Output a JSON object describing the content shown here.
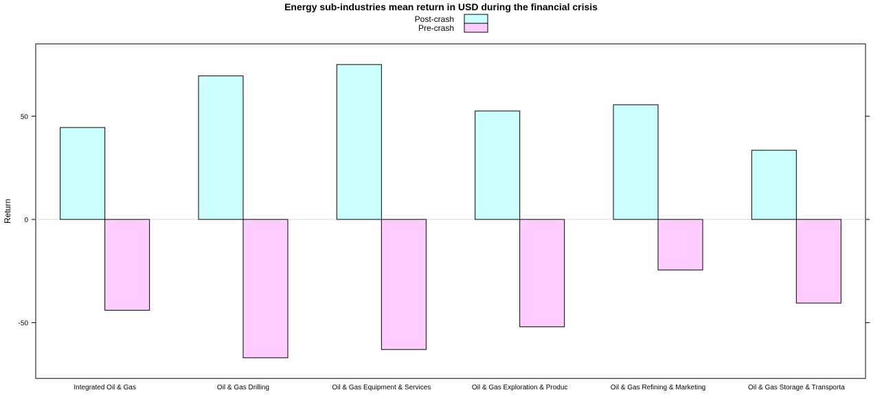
{
  "chart_data": {
    "type": "bar",
    "title": "Energy sub-industries mean return in USD during the financial crisis",
    "ylabel": "Return",
    "xlabel": "",
    "categories": [
      "Integrated Oil & Gas",
      "Oil & Gas Drilling",
      "Oil & Gas Equipment & Services",
      "Oil & Gas Exploration & Produc",
      "Oil & Gas Refining & Marketing",
      "Oil & Gas Storage & Transporta"
    ],
    "series": [
      {
        "name": "Post-crash",
        "color": "#ccffff",
        "values": [
          44.5,
          69.5,
          75,
          52.5,
          55.5,
          33.5
        ]
      },
      {
        "name": "Pre-crash",
        "color": "#ffccff",
        "values": [
          -44,
          -67,
          -63,
          -52,
          -24.5,
          -40.5
        ]
      }
    ],
    "ylim": [
      -77,
      85
    ],
    "yticks": [
      -50,
      0,
      50
    ],
    "ytick_labels": [
      "-50",
      "0",
      "50"
    ],
    "reference_line": 0,
    "grid": false,
    "legend_position": "top"
  }
}
